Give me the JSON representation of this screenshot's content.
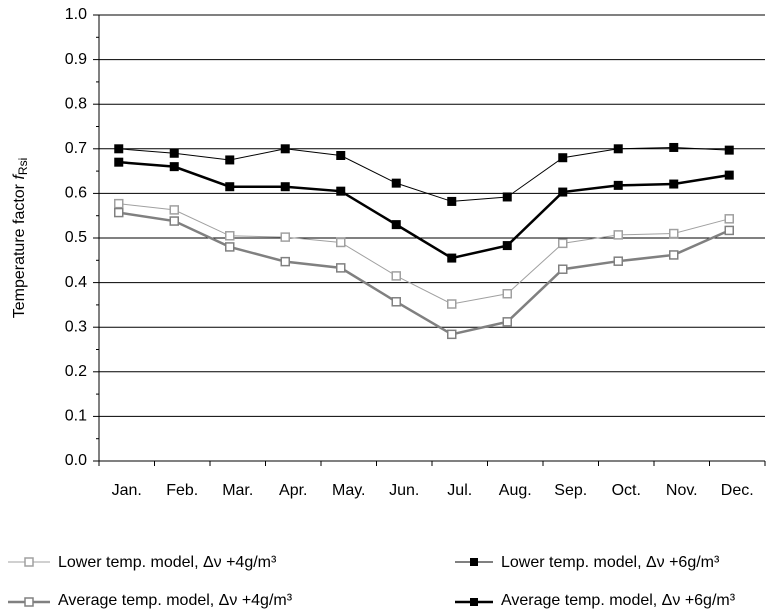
{
  "chart_data": {
    "type": "line",
    "y_label": {
      "text": "Temperature factor",
      "symbol": "f",
      "subscript": "Rsi"
    },
    "categories": [
      "Jan.",
      "Feb.",
      "Mar.",
      "Apr.",
      "May.",
      "Jun.",
      "Jul.",
      "Aug.",
      "Sep.",
      "Oct.",
      "Nov.",
      "Dec."
    ],
    "ylim": [
      0,
      1
    ],
    "yticks": [
      {
        "value": 0,
        "label": "0.0"
      },
      0.1,
      0.2,
      0.3,
      0.4,
      0.5,
      0.6,
      0.7,
      0.8,
      0.9,
      {
        "value": 1,
        "label": "1.0"
      }
    ],
    "grid": true,
    "series": [
      {
        "name": "Lower temp. model, Δν +4g/m³",
        "color": "#a0a0a0",
        "line_width": 1,
        "marker": "open",
        "values": [
          0.577,
          0.563,
          0.505,
          0.502,
          0.49,
          0.415,
          0.352,
          0.375,
          0.488,
          0.507,
          0.51,
          0.543
        ]
      },
      {
        "name": "Average temp. model, Δν +4g/m³",
        "color": "#808080",
        "line_width": 2.5,
        "marker": "open",
        "values": [
          0.557,
          0.538,
          0.48,
          0.447,
          0.433,
          0.357,
          0.284,
          0.312,
          0.43,
          0.448,
          0.462,
          0.517
        ]
      },
      {
        "name": "Lower temp. model, Δν +6g/m³",
        "color": "#000000",
        "line_width": 1,
        "marker": "filled",
        "values": [
          0.7,
          0.69,
          0.675,
          0.7,
          0.685,
          0.623,
          0.582,
          0.592,
          0.68,
          0.7,
          0.703,
          0.697
        ]
      },
      {
        "name": "Average temp. model, Δν +6g/m³",
        "color": "#000000",
        "line_width": 2.5,
        "marker": "filled",
        "values": [
          0.67,
          0.66,
          0.615,
          0.615,
          0.605,
          0.53,
          0.455,
          0.483,
          0.603,
          0.618,
          0.621,
          0.641
        ]
      }
    ]
  }
}
